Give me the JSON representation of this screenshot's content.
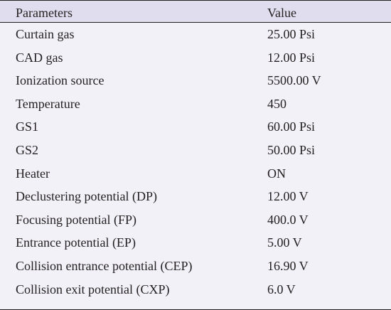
{
  "table": {
    "header": {
      "parameters": "Parameters",
      "value": "Value"
    },
    "rows": [
      {
        "parameter": "Curtain gas",
        "value": "25.00 Psi"
      },
      {
        "parameter": "CAD gas",
        "value": "12.00 Psi"
      },
      {
        "parameter": "Ionization source",
        "value": "5500.00 V"
      },
      {
        "parameter": "Temperature",
        "value": "450"
      },
      {
        "parameter": "GS1",
        "value": "60.00 Psi"
      },
      {
        "parameter": "GS2",
        "value": "50.00 Psi"
      },
      {
        "parameter": "Heater",
        "value": "ON"
      },
      {
        "parameter": "Declustering potential (DP)",
        "value": "12.00 V"
      },
      {
        "parameter": "Focusing potential (FP)",
        "value": "400.0 V"
      },
      {
        "parameter": "Entrance potential (EP)",
        "value": "5.00 V"
      },
      {
        "parameter": "Collision entrance potential (CEP)",
        "value": "16.90 V"
      },
      {
        "parameter": "Collision exit potential (CXP)",
        "value": "6.0 V"
      }
    ]
  },
  "colors": {
    "header_bg": "#e0deee",
    "body_bg": "#f2f1f7",
    "text": "#231f20"
  }
}
